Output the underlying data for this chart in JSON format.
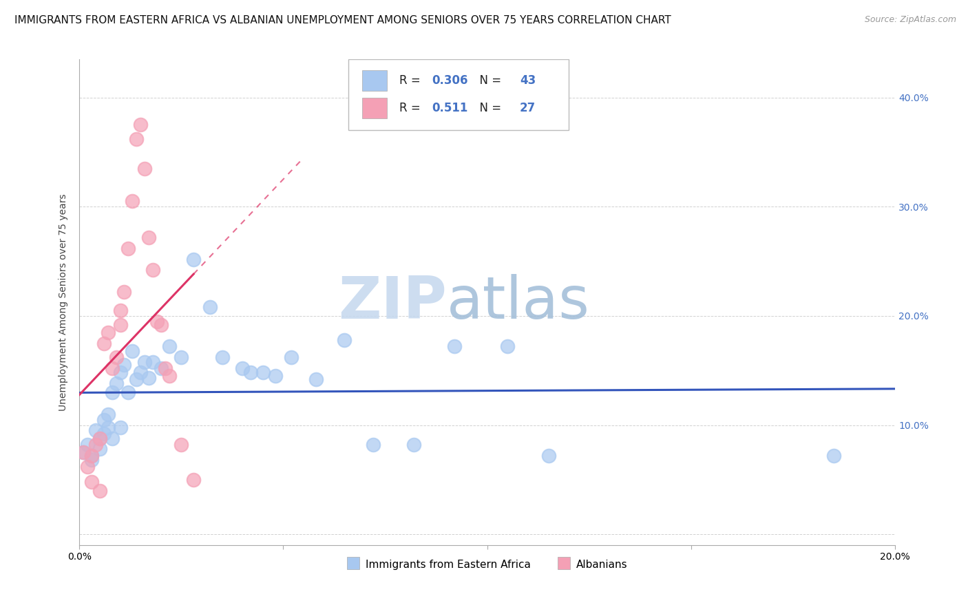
{
  "title": "IMMIGRANTS FROM EASTERN AFRICA VS ALBANIAN UNEMPLOYMENT AMONG SENIORS OVER 75 YEARS CORRELATION CHART",
  "source": "Source: ZipAtlas.com",
  "ylabel": "Unemployment Among Seniors over 75 years",
  "y_ticks": [
    0.0,
    0.1,
    0.2,
    0.3,
    0.4
  ],
  "y_tick_labels": [
    "",
    "10.0%",
    "20.0%",
    "30.0%",
    "40.0%"
  ],
  "x_lim": [
    0.0,
    0.2
  ],
  "y_lim": [
    -0.01,
    0.435
  ],
  "r_blue": 0.306,
  "n_blue": 43,
  "r_pink": 0.511,
  "n_pink": 27,
  "legend_label_blue": "Immigrants from Eastern Africa",
  "legend_label_pink": "Albanians",
  "watermark_zip": "ZIP",
  "watermark_atlas": "atlas",
  "blue_color": "#A8C8F0",
  "pink_color": "#F4A0B5",
  "blue_line_color": "#3355BB",
  "pink_line_color": "#DD3366",
  "title_fontsize": 11,
  "source_fontsize": 9,
  "axis_label_fontsize": 10,
  "tick_fontsize": 10,
  "legend_fontsize": 12,
  "blue_scatter": [
    [
      0.001,
      0.075
    ],
    [
      0.002,
      0.082
    ],
    [
      0.003,
      0.068
    ],
    [
      0.003,
      0.072
    ],
    [
      0.004,
      0.095
    ],
    [
      0.005,
      0.078
    ],
    [
      0.005,
      0.088
    ],
    [
      0.006,
      0.105
    ],
    [
      0.006,
      0.092
    ],
    [
      0.007,
      0.11
    ],
    [
      0.007,
      0.098
    ],
    [
      0.008,
      0.13
    ],
    [
      0.008,
      0.088
    ],
    [
      0.009,
      0.138
    ],
    [
      0.01,
      0.098
    ],
    [
      0.01,
      0.148
    ],
    [
      0.011,
      0.155
    ],
    [
      0.012,
      0.13
    ],
    [
      0.013,
      0.168
    ],
    [
      0.014,
      0.142
    ],
    [
      0.015,
      0.148
    ],
    [
      0.016,
      0.158
    ],
    [
      0.017,
      0.143
    ],
    [
      0.018,
      0.158
    ],
    [
      0.02,
      0.152
    ],
    [
      0.022,
      0.172
    ],
    [
      0.025,
      0.162
    ],
    [
      0.028,
      0.252
    ],
    [
      0.032,
      0.208
    ],
    [
      0.035,
      0.162
    ],
    [
      0.04,
      0.152
    ],
    [
      0.042,
      0.148
    ],
    [
      0.045,
      0.148
    ],
    [
      0.048,
      0.145
    ],
    [
      0.052,
      0.162
    ],
    [
      0.058,
      0.142
    ],
    [
      0.065,
      0.178
    ],
    [
      0.072,
      0.082
    ],
    [
      0.082,
      0.082
    ],
    [
      0.092,
      0.172
    ],
    [
      0.105,
      0.172
    ],
    [
      0.115,
      0.072
    ],
    [
      0.185,
      0.072
    ]
  ],
  "pink_scatter": [
    [
      0.001,
      0.075
    ],
    [
      0.002,
      0.062
    ],
    [
      0.003,
      0.048
    ],
    [
      0.003,
      0.072
    ],
    [
      0.004,
      0.082
    ],
    [
      0.005,
      0.088
    ],
    [
      0.005,
      0.04
    ],
    [
      0.006,
      0.175
    ],
    [
      0.007,
      0.185
    ],
    [
      0.008,
      0.152
    ],
    [
      0.009,
      0.162
    ],
    [
      0.01,
      0.192
    ],
    [
      0.01,
      0.205
    ],
    [
      0.011,
      0.222
    ],
    [
      0.012,
      0.262
    ],
    [
      0.013,
      0.305
    ],
    [
      0.014,
      0.362
    ],
    [
      0.015,
      0.375
    ],
    [
      0.016,
      0.335
    ],
    [
      0.017,
      0.272
    ],
    [
      0.018,
      0.242
    ],
    [
      0.019,
      0.195
    ],
    [
      0.02,
      0.192
    ],
    [
      0.021,
      0.152
    ],
    [
      0.022,
      0.145
    ],
    [
      0.025,
      0.082
    ],
    [
      0.028,
      0.05
    ]
  ]
}
